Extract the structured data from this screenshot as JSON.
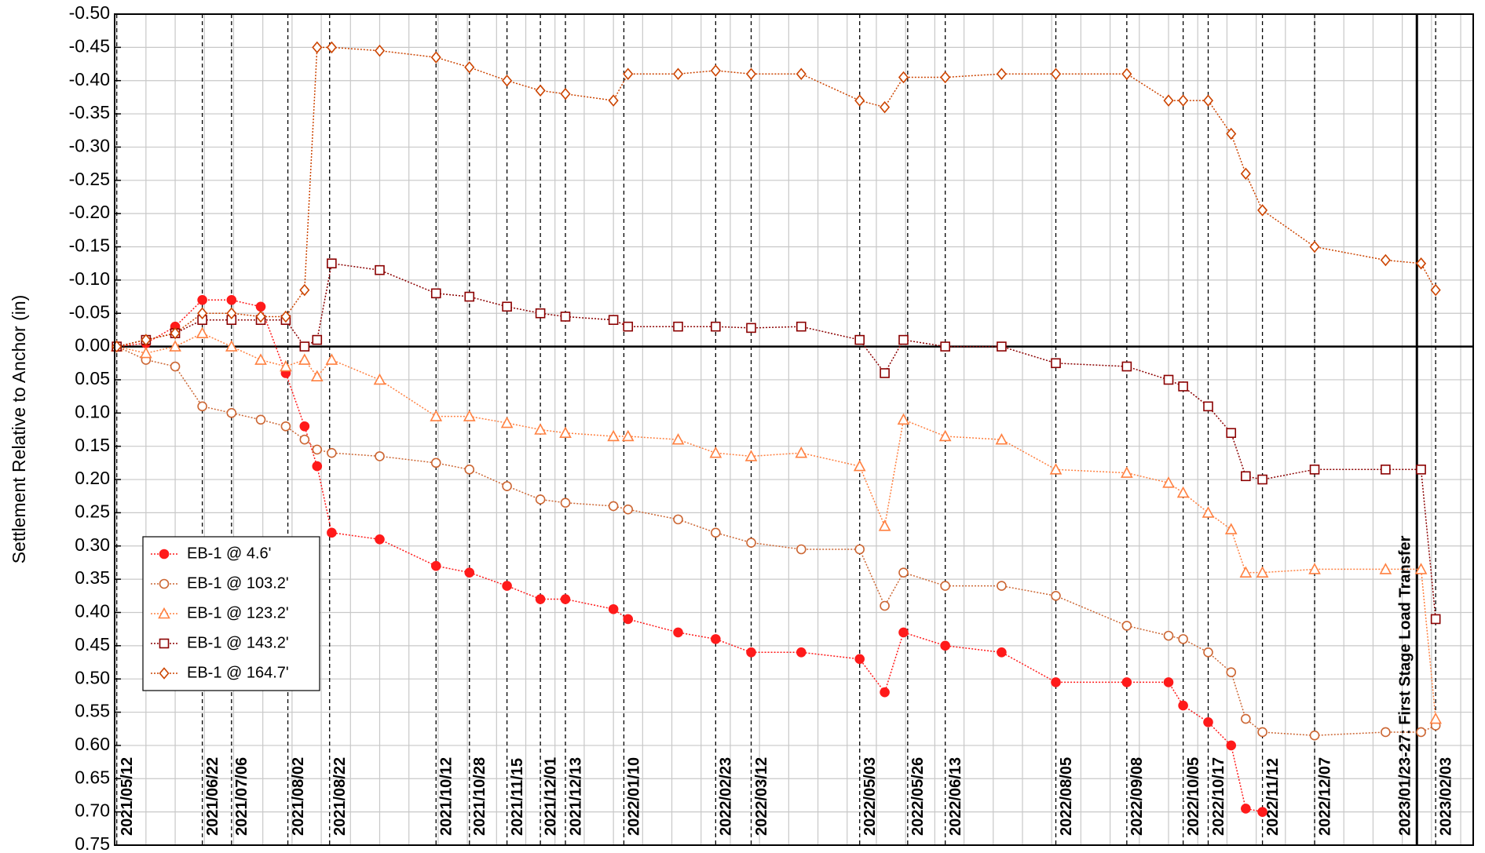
{
  "chart_data": {
    "type": "line",
    "y_label": "Settlement Relative to Anchor (in)",
    "xlim": [
      "2021-05-11",
      "2023-02-21"
    ],
    "xticks": [
      "2021-05-12",
      "2021-05-26",
      "2021-06-09",
      "2021-06-23",
      "2021-07-07",
      "2021-07-21",
      "2021-08-04",
      "2021-08-18",
      "2021-09-01",
      "2021-09-15",
      "2021-09-29",
      "2021-10-13",
      "2021-10-27",
      "2021-11-10",
      "2021-11-24",
      "2021-12-08",
      "2021-12-22",
      "2022-01-05",
      "2022-01-19",
      "2022-02-02",
      "2022-02-16",
      "2022-03-02",
      "2022-03-16",
      "2022-03-30",
      "2022-04-13",
      "2022-04-27",
      "2022-05-11",
      "2022-05-25",
      "2022-06-08",
      "2022-06-22",
      "2022-07-06",
      "2022-07-20",
      "2022-08-03",
      "2022-08-17",
      "2022-08-31",
      "2022-09-14",
      "2022-09-28",
      "2022-10-12",
      "2022-10-26",
      "2022-11-09",
      "2022-11-23",
      "2022-12-07",
      "2022-12-21",
      "2023-01-04",
      "2023-01-18",
      "2023-02-01",
      "2023-02-15"
    ],
    "ylim": [
      0.75,
      -0.5
    ],
    "yticks": [
      {
        "value": -0.5,
        "label": "-0.50"
      },
      -0.45,
      {
        "value": -0.4,
        "label": "-0.40"
      },
      -0.35,
      {
        "value": -0.3,
        "label": "-0.30"
      },
      -0.25,
      {
        "value": -0.2,
        "label": "-0.20"
      },
      -0.15,
      {
        "value": -0.1,
        "label": "-0.10"
      },
      -0.05,
      {
        "value": 0,
        "label": "0.00"
      },
      0.05,
      {
        "value": 0.1,
        "label": "0.10"
      },
      0.15,
      {
        "value": 0.2,
        "label": "0.20"
      },
      0.25,
      {
        "value": 0.3,
        "label": "0.30"
      },
      0.35,
      {
        "value": 0.4,
        "label": "0.40"
      },
      0.45,
      {
        "value": 0.5,
        "label": "0.50"
      },
      0.55,
      {
        "value": 0.6,
        "label": "0.60"
      },
      0.65,
      {
        "value": 0.7,
        "label": "0.70"
      },
      0.75
    ],
    "grid": true,
    "reference_line": 0,
    "legend": "lower left",
    "x": [
      "2021-05-12",
      "2021-05-26",
      "2021-06-09",
      "2021-06-22",
      "2021-07-06",
      "2021-07-20",
      "2021-08-01",
      "2021-08-10",
      "2021-08-16",
      "2021-08-23",
      "2021-09-15",
      "2021-10-12",
      "2021-10-28",
      "2021-11-15",
      "2021-12-01",
      "2021-12-13",
      "2022-01-05",
      "2022-01-12",
      "2022-02-05",
      "2022-02-23",
      "2022-03-12",
      "2022-04-05",
      "2022-05-03",
      "2022-05-15",
      "2022-05-24",
      "2022-06-13",
      "2022-07-10",
      "2022-08-05",
      "2022-09-08",
      "2022-09-28",
      "2022-10-05",
      "2022-10-17",
      "2022-10-28",
      "2022-11-04",
      "2022-11-12",
      "2022-12-07",
      "2023-01-10",
      "2023-01-27",
      "2023-02-03"
    ],
    "series": [
      {
        "name": "EB-1 @ 4.6'",
        "color": "#ff1a1a",
        "marker": "circle-filled",
        "values": [
          0,
          -0.005,
          -0.03,
          -0.07,
          -0.07,
          -0.06,
          0.04,
          0.12,
          0.18,
          0.28,
          0.29,
          0.33,
          0.34,
          0.36,
          0.38,
          0.38,
          0.395,
          0.41,
          0.43,
          0.44,
          0.46,
          0.46,
          0.47,
          0.52,
          0.43,
          0.45,
          0.46,
          0.505,
          0.505,
          0.505,
          0.54,
          0.565,
          0.6,
          0.695,
          0.7,
          null,
          null,
          null,
          null
        ]
      },
      {
        "name": "EB-1 @ 103.2'",
        "color": "#cc6633",
        "marker": "circle",
        "values": [
          0,
          0.02,
          0.03,
          0.09,
          0.1,
          0.11,
          0.12,
          0.14,
          0.155,
          0.16,
          0.165,
          0.175,
          0.185,
          0.21,
          0.23,
          0.235,
          0.24,
          0.245,
          0.26,
          0.28,
          0.295,
          0.305,
          0.305,
          0.39,
          0.34,
          0.36,
          0.36,
          0.375,
          0.42,
          0.435,
          0.44,
          0.46,
          0.49,
          0.56,
          0.58,
          0.585,
          0.58,
          0.58,
          0.57
        ]
      },
      {
        "name": "EB-1 @ 123.2'",
        "color": "#ff8040",
        "marker": "triangle",
        "values": [
          0,
          0.01,
          0,
          -0.02,
          0,
          0.02,
          0.03,
          0.02,
          0.045,
          0.02,
          0.05,
          0.105,
          0.105,
          0.115,
          0.125,
          0.13,
          0.135,
          0.135,
          0.14,
          0.16,
          0.165,
          0.16,
          0.18,
          0.27,
          0.11,
          0.135,
          0.14,
          0.185,
          0.19,
          0.205,
          0.22,
          0.25,
          0.275,
          0.34,
          0.34,
          0.335,
          0.335,
          0.335,
          0.56
        ]
      },
      {
        "name": "EB-1 @ 143.2'",
        "color": "#8b0000",
        "marker": "square",
        "values": [
          0,
          -0.01,
          -0.02,
          -0.04,
          -0.04,
          -0.04,
          -0.04,
          0,
          -0.01,
          -0.125,
          -0.115,
          -0.08,
          -0.075,
          -0.06,
          -0.05,
          -0.045,
          -0.04,
          -0.03,
          -0.03,
          -0.03,
          -0.028,
          -0.03,
          -0.01,
          0.04,
          -0.01,
          0,
          0,
          0.025,
          0.03,
          0.05,
          0.06,
          0.09,
          0.13,
          0.195,
          0.2,
          0.185,
          0.185,
          0.185,
          0.41
        ]
      },
      {
        "name": "EB-1 @ 164.7'",
        "color": "#cc4400",
        "marker": "diamond",
        "values": [
          0,
          -0.01,
          -0.02,
          -0.05,
          -0.05,
          -0.045,
          -0.045,
          -0.085,
          -0.45,
          -0.45,
          -0.445,
          -0.435,
          -0.42,
          -0.4,
          -0.385,
          -0.38,
          -0.37,
          -0.41,
          -0.41,
          -0.415,
          -0.41,
          -0.41,
          -0.37,
          -0.36,
          -0.405,
          -0.405,
          -0.41,
          -0.41,
          -0.41,
          -0.37,
          -0.37,
          -0.37,
          -0.32,
          -0.26,
          -0.205,
          -0.15,
          -0.13,
          -0.125,
          -0.085
        ]
      }
    ],
    "annotations": [
      {
        "x": "2021-05-12",
        "label": "2021/05/12",
        "style": "dashed"
      },
      {
        "x": "2021-06-22",
        "label": "2021/06/22",
        "style": "dashed"
      },
      {
        "x": "2021-07-06",
        "label": "2021/07/06",
        "style": "dashed"
      },
      {
        "x": "2021-08-02",
        "label": "2021/08/02",
        "style": "dashed"
      },
      {
        "x": "2021-08-22",
        "label": "2021/08/22",
        "style": "dashed"
      },
      {
        "x": "2021-10-12",
        "label": "2021/10/12",
        "style": "dashed"
      },
      {
        "x": "2021-10-28",
        "label": "2021/10/28",
        "style": "dashed"
      },
      {
        "x": "2021-11-15",
        "label": "2021/11/15",
        "style": "dashed"
      },
      {
        "x": "2021-12-01",
        "label": "2021/12/01",
        "style": "dashed"
      },
      {
        "x": "2021-12-13",
        "label": "2021/12/13",
        "style": "dashed"
      },
      {
        "x": "2022-01-10",
        "label": "2022/01/10",
        "style": "dashed"
      },
      {
        "x": "2022-02-23",
        "label": "2022/02/23",
        "style": "dashed"
      },
      {
        "x": "2022-03-12",
        "label": "2022/03/12",
        "style": "dashed"
      },
      {
        "x": "2022-05-03",
        "label": "2022/05/03",
        "style": "dashed"
      },
      {
        "x": "2022-05-26",
        "label": "2022/05/26",
        "style": "dashed"
      },
      {
        "x": "2022-06-13",
        "label": "2022/06/13",
        "style": "dashed"
      },
      {
        "x": "2022-08-05",
        "label": "2022/08/05",
        "style": "dashed"
      },
      {
        "x": "2022-09-08",
        "label": "2022/09/08",
        "style": "dashed"
      },
      {
        "x": "2022-10-05",
        "label": "2022/10/05",
        "style": "dashed"
      },
      {
        "x": "2022-10-17",
        "label": "2022/10/17",
        "style": "dashed"
      },
      {
        "x": "2022-11-12",
        "label": "2022/11/12",
        "style": "dashed"
      },
      {
        "x": "2022-12-07",
        "label": "2022/12/07",
        "style": "dashed"
      },
      {
        "x": "2023-01-25",
        "label": "2023/01/23-27: First Stage Load Transfer",
        "style": "solid"
      },
      {
        "x": "2023-02-03",
        "label": "2023/02/03",
        "style": "dashed"
      }
    ]
  }
}
